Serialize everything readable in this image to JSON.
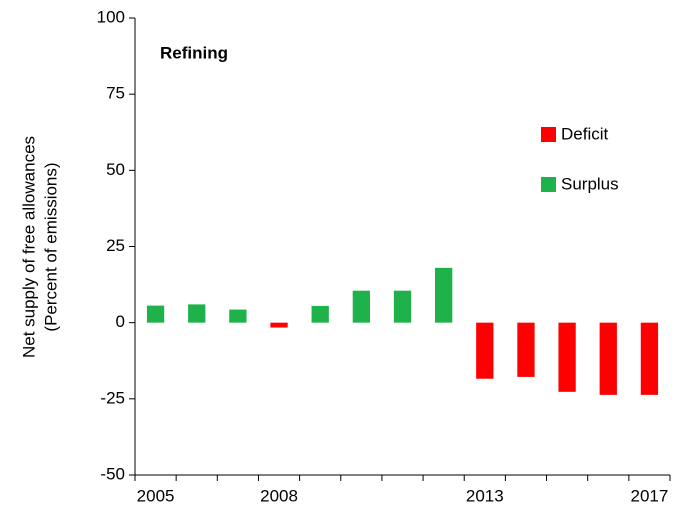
{
  "chart_data": {
    "type": "bar",
    "title": "Refining",
    "y_label": [
      "Net supply of free allowances",
      "(Percent of emissions)"
    ],
    "categories": [
      "2005",
      null,
      null,
      "2008",
      null,
      null,
      null,
      null,
      "2013",
      null,
      null,
      null,
      "2017"
    ],
    "series": [
      {
        "name": "Deficit",
        "color": "#ff0000",
        "values": [
          null,
          null,
          null,
          -1.6,
          null,
          null,
          null,
          null,
          -18.4,
          -17.8,
          -22.7,
          -23.7,
          -23.7
        ]
      },
      {
        "name": "Surplus",
        "color": "#1fb24a",
        "values": [
          5.6,
          6,
          4.3,
          null,
          5.5,
          10.5,
          10.5,
          18,
          null,
          null,
          null,
          null,
          null
        ]
      }
    ],
    "ylim": [
      -50,
      100
    ],
    "yticks": [
      -50,
      -25,
      0,
      25,
      50,
      75,
      100
    ]
  }
}
